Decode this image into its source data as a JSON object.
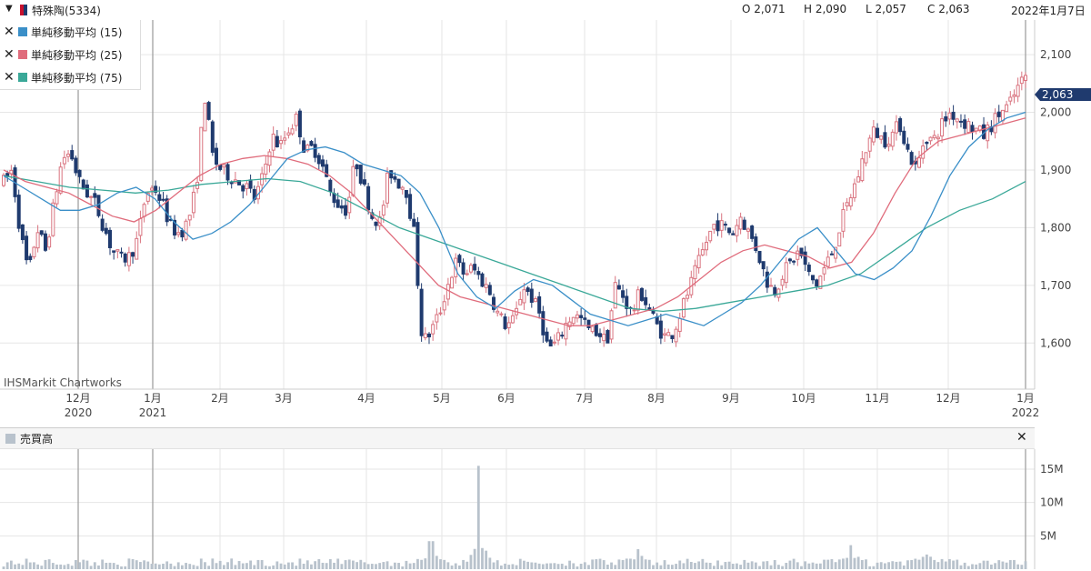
{
  "header": {
    "symbol": "特殊陶(5334)",
    "open": "O 2,071",
    "high": "H 2,090",
    "low": "L 2,057",
    "close": "C 2,063",
    "date": "2022年1月7日",
    "symbol_color": "#c8102e"
  },
  "legend": [
    {
      "label": "単純移動平均 (15)",
      "color": "#3a8fc8"
    },
    {
      "label": "単純移動平均 (25)",
      "color": "#e06c7c"
    },
    {
      "label": "単純移動平均 (75)",
      "color": "#3aa898"
    }
  ],
  "watermark": "IHSMarkit Chartworks",
  "last_price_tag": "2,063",
  "volume_panel": {
    "title": "売買高",
    "close_icon": "close-icon"
  },
  "chart_data": [
    {
      "type": "candlestick",
      "y_ticks": [
        "2,100",
        "2,000",
        "1,900",
        "1,800",
        "1,700",
        "1,600"
      ],
      "ylim": [
        1520,
        2160
      ],
      "x_ticks": [
        {
          "label": "12月",
          "year": "2020"
        },
        {
          "label": "1月",
          "year": "2021"
        },
        {
          "label": "2月",
          "year": ""
        },
        {
          "label": "3月",
          "year": ""
        },
        {
          "label": "4月",
          "year": ""
        },
        {
          "label": "5月",
          "year": ""
        },
        {
          "label": "6月",
          "year": ""
        },
        {
          "label": "7月",
          "year": ""
        },
        {
          "label": "8月",
          "year": ""
        },
        {
          "label": "9月",
          "year": ""
        },
        {
          "label": "10月",
          "year": ""
        },
        {
          "label": "11月",
          "year": ""
        },
        {
          "label": "12月",
          "year": ""
        },
        {
          "label": "1月",
          "year": "2022"
        }
      ],
      "close_path": [
        1880,
        1900,
        1790,
        1720,
        1800,
        1760,
        1840,
        1920,
        1930,
        1880,
        1860,
        1840,
        1800,
        1760,
        1745,
        1750,
        1780,
        1860,
        1870,
        1840,
        1800,
        1790,
        1810,
        1870,
        2030,
        1920,
        1900,
        1890,
        1880,
        1870,
        1850,
        1890,
        1960,
        1940,
        1970,
        1990,
        1930,
        1940,
        1910,
        1860,
        1840,
        1830,
        1920,
        1870,
        1820,
        1810,
        1900,
        1880,
        1870,
        1790,
        1600,
        1620,
        1650,
        1700,
        1740,
        1720,
        1730,
        1710,
        1690,
        1650,
        1630,
        1640,
        1700,
        1680,
        1650,
        1590,
        1600,
        1630,
        1650,
        1640,
        1620,
        1620,
        1600,
        1700,
        1680,
        1650,
        1690,
        1660,
        1630,
        1610,
        1620,
        1660,
        1700,
        1740,
        1780,
        1810,
        1800,
        1790,
        1820,
        1790,
        1760,
        1710,
        1690,
        1720,
        1740,
        1760,
        1720,
        1700,
        1730,
        1760,
        1810,
        1850,
        1890,
        1940,
        1970,
        1950,
        1960,
        1980,
        1930,
        1900,
        1960,
        1950,
        1980,
        2000,
        1990,
        1980,
        1970,
        1960,
        1980,
        2000,
        2010,
        2040,
        2063
      ],
      "ma15": [
        1890,
        1870,
        1850,
        1830,
        1830,
        1840,
        1860,
        1870,
        1850,
        1810,
        1780,
        1790,
        1810,
        1840,
        1880,
        1920,
        1935,
        1940,
        1930,
        1910,
        1900,
        1890,
        1860,
        1800,
        1720,
        1680,
        1660,
        1690,
        1710,
        1700,
        1675,
        1650,
        1640,
        1630,
        1640,
        1650,
        1640,
        1630,
        1650,
        1670,
        1700,
        1740,
        1780,
        1800,
        1760,
        1720,
        1710,
        1730,
        1760,
        1820,
        1890,
        1940,
        1970,
        1990,
        2000
      ],
      "ma25": [
        1900,
        1880,
        1870,
        1860,
        1840,
        1820,
        1810,
        1830,
        1860,
        1890,
        1910,
        1920,
        1925,
        1920,
        1910,
        1890,
        1860,
        1820,
        1780,
        1740,
        1700,
        1680,
        1670,
        1660,
        1650,
        1640,
        1630,
        1630,
        1640,
        1650,
        1660,
        1680,
        1710,
        1740,
        1760,
        1770,
        1760,
        1750,
        1730,
        1740,
        1790,
        1860,
        1920,
        1950,
        1960,
        1970,
        1980,
        1990
      ],
      "ma75": [
        1890,
        1880,
        1870,
        1865,
        1860,
        1865,
        1875,
        1880,
        1885,
        1880,
        1860,
        1830,
        1800,
        1780,
        1760,
        1740,
        1720,
        1700,
        1680,
        1660,
        1655,
        1660,
        1670,
        1680,
        1690,
        1700,
        1720,
        1760,
        1800,
        1830,
        1850,
        1880
      ]
    },
    {
      "type": "bar",
      "title": "売買高",
      "y_ticks": [
        "15M",
        "10M",
        "5M"
      ],
      "ylim": [
        0,
        18
      ],
      "baseline": 1.0,
      "spikes": [
        {
          "position": 0.4652,
          "value": 15.5
        },
        {
          "position": 0.4187,
          "value": 4.2
        },
        {
          "position": 0.6216,
          "value": 3.0
        },
        {
          "position": 0.8296,
          "value": 3.6
        },
        {
          "position": 0.9034,
          "value": 2.2
        }
      ]
    }
  ]
}
